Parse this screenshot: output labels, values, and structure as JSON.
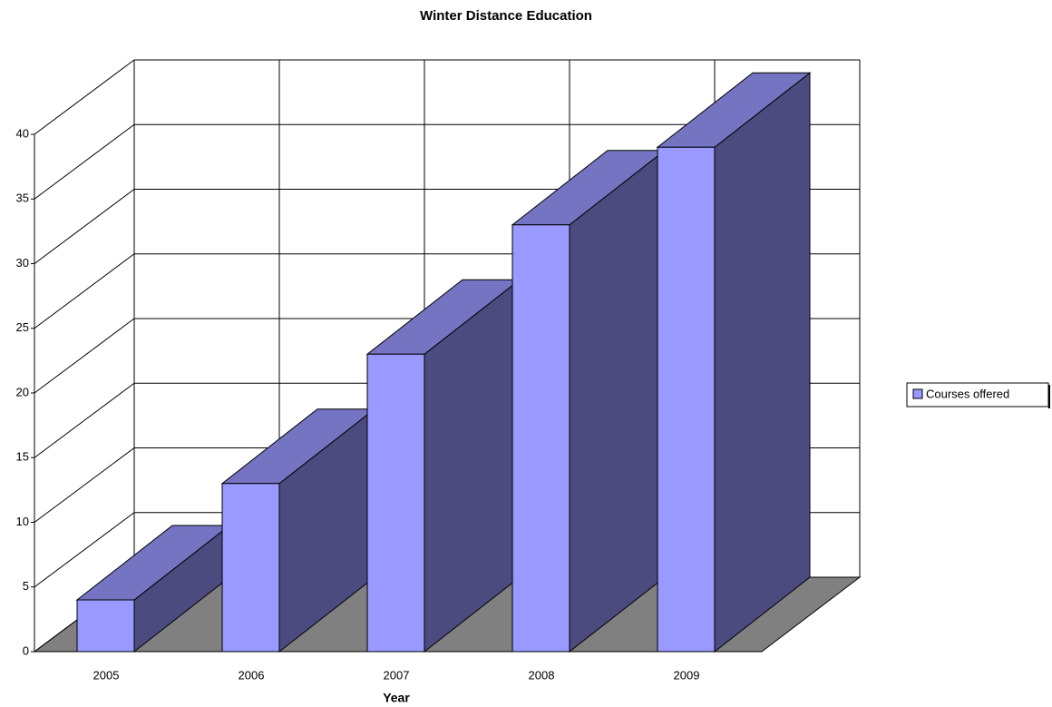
{
  "chart_data": {
    "type": "bar",
    "title": "Winter Distance Education",
    "x_label": "Year",
    "categories": [
      "2005",
      "2006",
      "2007",
      "2008",
      "2009"
    ],
    "series": [
      {
        "name": "Courses offered",
        "color": "#9999ff",
        "values": [
          4,
          13,
          23,
          33,
          39
        ]
      }
    ],
    "ylim": [
      0,
      40
    ],
    "yticks": [
      0,
      5,
      10,
      15,
      20,
      25,
      30,
      35,
      40
    ],
    "grid": true,
    "legend": "right"
  }
}
